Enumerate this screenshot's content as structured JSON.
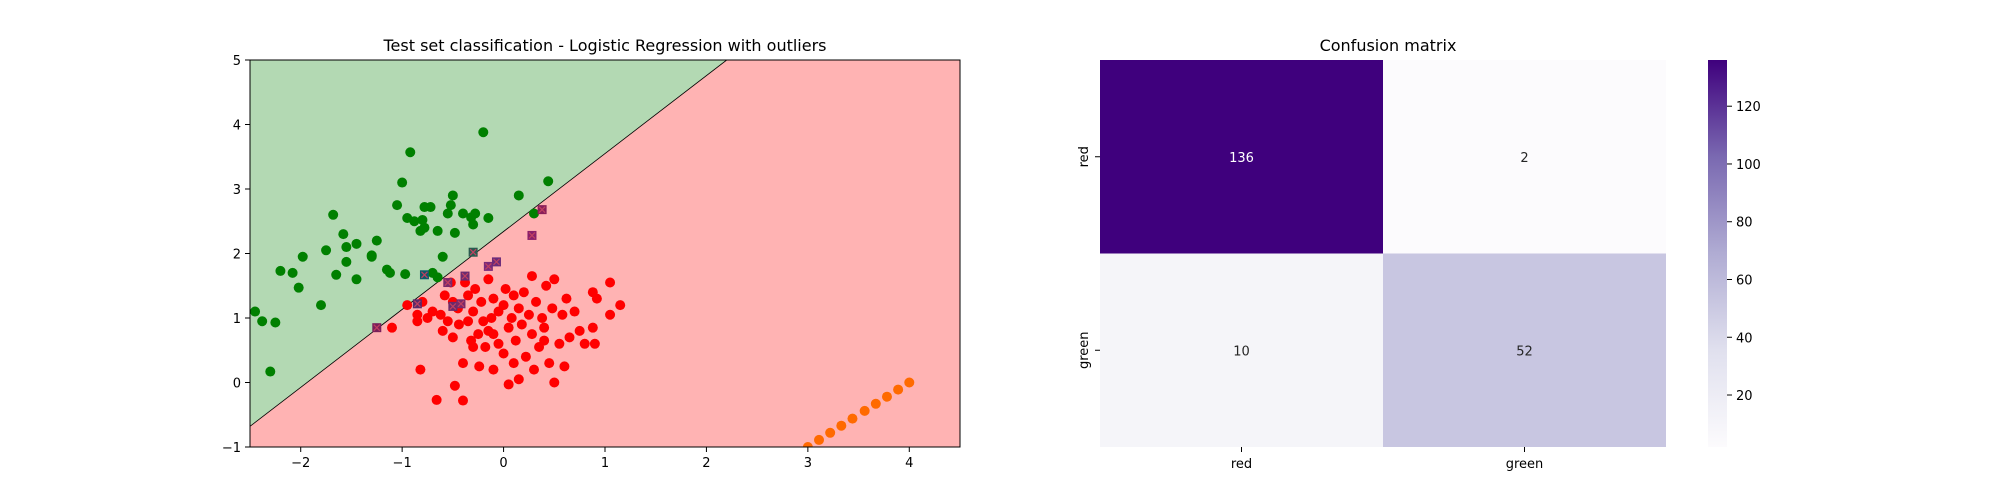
{
  "chart_data": [
    {
      "type": "scatter",
      "title": "Test set classification - Logistic Regression with outliers",
      "xlabel": "",
      "ylabel": "",
      "xlim": [
        -2.5,
        4.5
      ],
      "ylim": [
        -1,
        5
      ],
      "xticks": [
        -2,
        -1,
        0,
        1,
        2,
        3,
        4
      ],
      "yticks": [
        -1,
        0,
        1,
        2,
        3,
        4,
        5
      ],
      "xtick_labels": [
        "−2",
        "−1",
        "0",
        "1",
        "2",
        "3",
        "4"
      ],
      "ytick_labels": [
        "−1",
        "0",
        "1",
        "2",
        "3",
        "4",
        "5"
      ],
      "grid": false,
      "decision_boundary": {
        "points": [
          [
            -2.5,
            -0.68
          ],
          [
            2.2,
            5.0
          ]
        ]
      },
      "regions": {
        "above": "#b3d9b3",
        "below": "#ffb3b3"
      },
      "series": [
        {
          "color": "#008000",
          "marker": "circle",
          "points": [
            [
              -2.45,
              1.1
            ],
            [
              -2.38,
              0.95
            ],
            [
              -2.25,
              0.93
            ],
            [
              -2.3,
              0.17
            ],
            [
              -2.2,
              1.73
            ],
            [
              -2.08,
              1.7
            ],
            [
              -2.02,
              1.47
            ],
            [
              -1.98,
              1.95
            ],
            [
              -1.8,
              1.2
            ],
            [
              -1.75,
              2.05
            ],
            [
              -1.68,
              2.6
            ],
            [
              -1.65,
              1.67
            ],
            [
              -1.58,
              2.3
            ],
            [
              -1.55,
              1.87
            ],
            [
              -1.55,
              2.1
            ],
            [
              -1.45,
              2.15
            ],
            [
              -1.45,
              1.6
            ],
            [
              -1.3,
              1.97
            ],
            [
              -1.3,
              1.95
            ],
            [
              -1.25,
              2.2
            ],
            [
              -1.15,
              1.75
            ],
            [
              -1.12,
              1.7
            ],
            [
              -1.05,
              2.75
            ],
            [
              -1.0,
              3.1
            ],
            [
              -0.97,
              1.68
            ],
            [
              -0.95,
              2.55
            ],
            [
              -0.92,
              3.57
            ],
            [
              -0.88,
              2.5
            ],
            [
              -0.82,
              2.35
            ],
            [
              -0.8,
              2.52
            ],
            [
              -0.78,
              2.4
            ],
            [
              -0.78,
              2.72
            ],
            [
              -0.72,
              2.72
            ],
            [
              -0.7,
              1.7
            ],
            [
              -0.65,
              1.63
            ],
            [
              -0.65,
              2.35
            ],
            [
              -0.6,
              1.95
            ],
            [
              -0.55,
              2.62
            ],
            [
              -0.52,
              2.75
            ],
            [
              -0.5,
              2.9
            ],
            [
              -0.48,
              2.32
            ],
            [
              -0.4,
              2.62
            ],
            [
              -0.32,
              2.56
            ],
            [
              -0.3,
              2.45
            ],
            [
              -0.28,
              2.62
            ],
            [
              -0.2,
              3.88
            ],
            [
              -0.15,
              2.55
            ],
            [
              0.15,
              2.9
            ],
            [
              0.3,
              2.62
            ],
            [
              0.44,
              3.12
            ]
          ]
        },
        {
          "color": "#ff0000",
          "marker": "circle",
          "points": [
            [
              -1.1,
              0.85
            ],
            [
              -0.95,
              1.2
            ],
            [
              -0.85,
              1.05
            ],
            [
              -0.85,
              0.95
            ],
            [
              -0.82,
              0.2
            ],
            [
              -0.8,
              1.25
            ],
            [
              -0.75,
              1.0
            ],
            [
              -0.7,
              1.1
            ],
            [
              -0.66,
              -0.27
            ],
            [
              -0.62,
              1.05
            ],
            [
              -0.58,
              1.35
            ],
            [
              -0.55,
              0.95
            ],
            [
              -0.52,
              1.55
            ],
            [
              -0.5,
              1.25
            ],
            [
              -0.5,
              0.7
            ],
            [
              -0.48,
              -0.05
            ],
            [
              -0.45,
              1.15
            ],
            [
              -0.44,
              0.9
            ],
            [
              -0.4,
              0.3
            ],
            [
              -0.4,
              -0.28
            ],
            [
              -0.38,
              1.55
            ],
            [
              -0.35,
              1.35
            ],
            [
              -0.35,
              0.95
            ],
            [
              -0.32,
              0.65
            ],
            [
              -0.3,
              1.1
            ],
            [
              -0.28,
              1.45
            ],
            [
              -0.25,
              0.75
            ],
            [
              -0.24,
              0.25
            ],
            [
              -0.22,
              1.25
            ],
            [
              -0.2,
              0.95
            ],
            [
              -0.18,
              0.55
            ],
            [
              -0.15,
              1.6
            ],
            [
              -0.15,
              0.8
            ],
            [
              -0.12,
              1.0
            ],
            [
              -0.1,
              1.3
            ],
            [
              -0.1,
              0.2
            ],
            [
              -0.05,
              1.1
            ],
            [
              -0.05,
              0.6
            ],
            [
              0.0,
              1.2
            ],
            [
              0.0,
              0.45
            ],
            [
              0.02,
              1.45
            ],
            [
              0.05,
              0.85
            ],
            [
              0.05,
              -0.03
            ],
            [
              0.08,
              1.0
            ],
            [
              0.1,
              1.35
            ],
            [
              0.1,
              0.3
            ],
            [
              0.12,
              0.65
            ],
            [
              0.15,
              1.15
            ],
            [
              0.18,
              0.9
            ],
            [
              0.2,
              1.4
            ],
            [
              0.22,
              0.4
            ],
            [
              0.25,
              1.05
            ],
            [
              0.28,
              0.75
            ],
            [
              0.28,
              1.65
            ],
            [
              0.3,
              0.2
            ],
            [
              0.32,
              1.25
            ],
            [
              0.35,
              0.55
            ],
            [
              0.38,
              1.0
            ],
            [
              0.4,
              0.85
            ],
            [
              0.42,
              1.5
            ],
            [
              0.45,
              0.3
            ],
            [
              0.48,
              1.15
            ],
            [
              0.5,
              1.6
            ],
            [
              0.5,
              0.0
            ],
            [
              0.55,
              0.6
            ],
            [
              0.58,
              1.05
            ],
            [
              0.6,
              0.25
            ],
            [
              0.62,
              1.3
            ],
            [
              0.65,
              0.7
            ],
            [
              0.7,
              1.1
            ],
            [
              0.75,
              0.8
            ],
            [
              0.8,
              0.6
            ],
            [
              0.88,
              0.85
            ],
            [
              0.88,
              1.4
            ],
            [
              0.9,
              0.6
            ],
            [
              0.92,
              1.3
            ],
            [
              1.05,
              1.05
            ],
            [
              1.05,
              1.55
            ],
            [
              1.15,
              1.2
            ],
            [
              -0.6,
              0.8
            ],
            [
              -0.3,
              0.55
            ],
            [
              0.15,
              0.05
            ],
            [
              0.4,
              0.65
            ],
            [
              -0.1,
              0.75
            ]
          ]
        },
        {
          "color": "#ff6a00",
          "marker": "circle",
          "points": [
            [
              3.0,
              -1.0
            ],
            [
              3.11,
              -0.89
            ],
            [
              3.22,
              -0.78
            ],
            [
              3.33,
              -0.67
            ],
            [
              3.44,
              -0.56
            ],
            [
              3.56,
              -0.44
            ],
            [
              3.67,
              -0.33
            ],
            [
              3.78,
              -0.22
            ],
            [
              3.89,
              -0.11
            ],
            [
              4.0,
              0.0
            ]
          ]
        },
        {
          "marker": "x",
          "points": [
            [
              -1.25,
              0.85
            ],
            [
              -0.85,
              1.22
            ],
            [
              -0.78,
              1.67
            ],
            [
              -0.5,
              1.18
            ],
            [
              -0.38,
              1.65
            ],
            [
              -0.3,
              2.02
            ],
            [
              -0.15,
              1.8
            ],
            [
              -0.07,
              1.87
            ],
            [
              -0.42,
              1.22
            ],
            [
              0.28,
              2.28
            ],
            [
              0.38,
              2.68
            ],
            [
              -0.55,
              1.55
            ]
          ],
          "colors": [
            "#7a1f5a",
            "#5a2a6a",
            "#0f5a6a",
            "#6a2a6a",
            "#6a2a70",
            "#2a5a50",
            "#7a2a7a",
            "#6a2a7a",
            "#7a2a6a",
            "#8a1f6a",
            "#8a1f5a",
            "#7a2a6a"
          ]
        }
      ]
    },
    {
      "type": "heatmap",
      "title": "Confusion matrix",
      "xticklabels": [
        "red",
        "green"
      ],
      "yticklabels": [
        "red",
        "green"
      ],
      "values": [
        [
          136,
          2
        ],
        [
          10,
          52
        ]
      ],
      "colorbar": {
        "ticks": [
          20,
          40,
          60,
          80,
          100,
          120
        ],
        "min": 2,
        "max": 136,
        "cmap": "Purples"
      }
    }
  ]
}
